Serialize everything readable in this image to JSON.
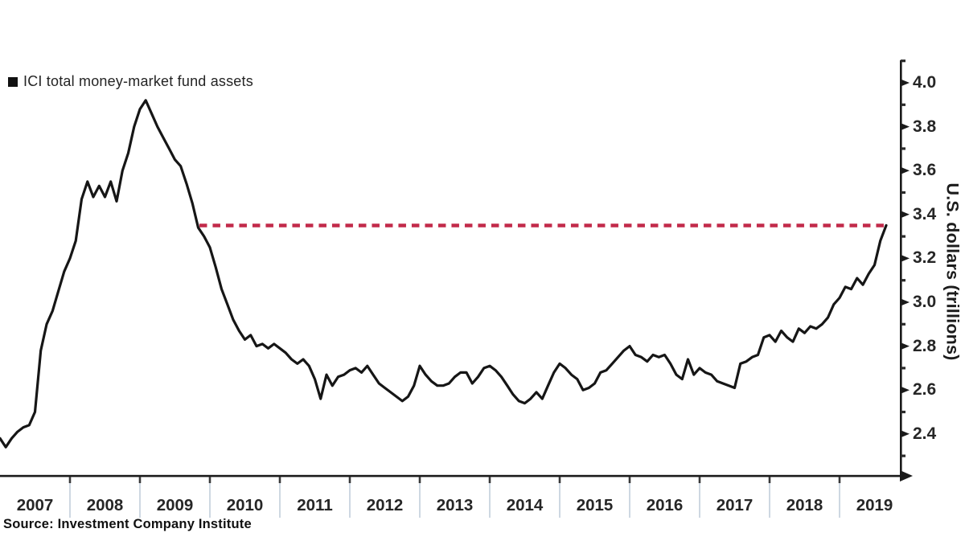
{
  "chart_data": {
    "type": "line",
    "title": "",
    "legend": [
      {
        "label": "ICI total money-market fund assets",
        "color": "#111111"
      }
    ],
    "ylabel": "U.S. dollars (trillions)",
    "source": "Source: Investment Company Institute",
    "ylim": [
      2.2,
      4.1
    ],
    "yticks_major": [
      4.0,
      3.8,
      3.6,
      3.4,
      3.2,
      3.0,
      2.8,
      2.6,
      2.4
    ],
    "yticks_minor": [
      4.1,
      3.9,
      3.7,
      3.5,
      3.3,
      3.1,
      2.9,
      2.7,
      2.5,
      2.3
    ],
    "xticks_years": [
      2007,
      2008,
      2009,
      2010,
      2011,
      2012,
      2013,
      2014,
      2015,
      2016,
      2017,
      2018,
      2019
    ],
    "grid": "off",
    "legend_position": "top-left",
    "series": [
      {
        "name": "ICI total money-market fund assets",
        "color": "#161616",
        "start_year": 2007,
        "points_per_year": 12,
        "unit": "USD trillions",
        "values": [
          2.38,
          2.34,
          2.38,
          2.41,
          2.43,
          2.44,
          2.5,
          2.78,
          2.9,
          2.96,
          3.05,
          3.14,
          3.2,
          3.28,
          3.47,
          3.55,
          3.48,
          3.53,
          3.48,
          3.55,
          3.46,
          3.6,
          3.68,
          3.8,
          3.88,
          3.92,
          3.86,
          3.8,
          3.75,
          3.7,
          3.65,
          3.62,
          3.54,
          3.45,
          3.34,
          3.3,
          3.25,
          3.16,
          3.06,
          2.99,
          2.92,
          2.87,
          2.83,
          2.85,
          2.8,
          2.81,
          2.79,
          2.81,
          2.79,
          2.77,
          2.74,
          2.72,
          2.74,
          2.71,
          2.65,
          2.56,
          2.67,
          2.62,
          2.66,
          2.67,
          2.69,
          2.7,
          2.68,
          2.71,
          2.67,
          2.63,
          2.61,
          2.59,
          2.57,
          2.55,
          2.57,
          2.62,
          2.71,
          2.67,
          2.64,
          2.62,
          2.62,
          2.63,
          2.66,
          2.68,
          2.68,
          2.63,
          2.66,
          2.7,
          2.71,
          2.69,
          2.66,
          2.62,
          2.58,
          2.55,
          2.54,
          2.56,
          2.59,
          2.56,
          2.62,
          2.68,
          2.72,
          2.7,
          2.67,
          2.65,
          2.6,
          2.61,
          2.63,
          2.68,
          2.69,
          2.72,
          2.75,
          2.78,
          2.8,
          2.76,
          2.75,
          2.73,
          2.76,
          2.75,
          2.76,
          2.72,
          2.67,
          2.65,
          2.74,
          2.67,
          2.7,
          2.68,
          2.67,
          2.64,
          2.63,
          2.62,
          2.61,
          2.72,
          2.73,
          2.75,
          2.76,
          2.84,
          2.85,
          2.82,
          2.87,
          2.84,
          2.82,
          2.88,
          2.86,
          2.89,
          2.88,
          2.9,
          2.93,
          2.99,
          3.02,
          3.07,
          3.06,
          3.11,
          3.08,
          3.13,
          3.17,
          3.28,
          3.35
        ]
      }
    ],
    "reference_line": {
      "value": 3.35,
      "start_year": 2009.85,
      "end_year": 2019.68,
      "style": "dashed",
      "color": "#c22a4a"
    }
  }
}
